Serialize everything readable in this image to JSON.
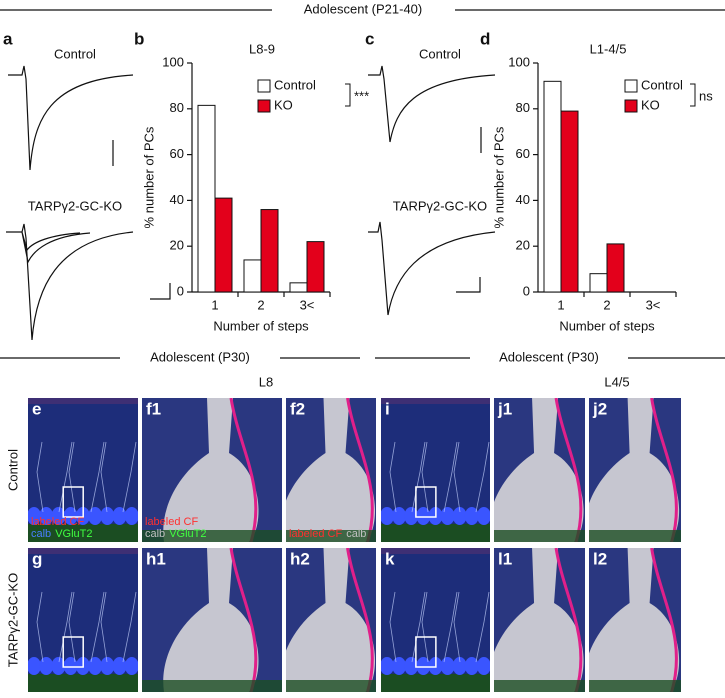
{
  "header": {
    "title": "Adolescent (P21-40)"
  },
  "traces": [
    {
      "panel": "a",
      "top": "Control",
      "bottom": "TARPγ2-GC-KO"
    },
    {
      "panel": "c",
      "top": "Control",
      "bottom": "TARPγ2-GC-KO"
    }
  ],
  "chart_data": [
    {
      "type": "bar",
      "panel": "b",
      "title": "L8-9",
      "x_label": "Number of steps",
      "y_label": "% number of PCs",
      "categories": [
        "1",
        "2",
        "3<"
      ],
      "series": [
        {
          "name": "Control",
          "color": "#ffffff",
          "values": [
            81.5,
            14,
            4
          ]
        },
        {
          "name": "KO",
          "color": "#e3001b",
          "values": [
            41,
            36,
            22
          ]
        }
      ],
      "ylim": [
        0,
        100
      ],
      "yticks": [
        0,
        20,
        40,
        60,
        80,
        100
      ],
      "significance": "***"
    },
    {
      "type": "bar",
      "panel": "d",
      "title": "L1-4/5",
      "x_label": "Number of steps",
      "y_label": "% number of PCs",
      "categories": [
        "1",
        "2",
        "3<"
      ],
      "series": [
        {
          "name": "Control",
          "color": "#ffffff",
          "values": [
            92,
            8,
            0
          ]
        },
        {
          "name": "KO",
          "color": "#e3001b",
          "values": [
            79,
            21,
            0
          ]
        }
      ],
      "ylim": [
        0,
        100
      ],
      "yticks": [
        0,
        20,
        40,
        60,
        80,
        100
      ],
      "significance": "ns"
    }
  ],
  "sections": [
    {
      "title": "Adolescent (P30)",
      "region": "L8"
    },
    {
      "title": "Adolescent (P30)",
      "region": "L4/5"
    }
  ],
  "row_labels": [
    "Control",
    "TARPγ2-GC-KO"
  ],
  "images": [
    {
      "label": "e",
      "captions": [
        [
          {
            "text": "labeled CF",
            "color": "#ff3030"
          }
        ],
        [
          {
            "text": "calb",
            "color": "#4a7dff"
          },
          {
            "text": "VGluT2",
            "color": "#40ff40"
          }
        ]
      ]
    },
    {
      "label": "f1",
      "captions": [
        [
          {
            "text": "labeled CF",
            "color": "#ff3030"
          }
        ],
        [
          {
            "text": "calb",
            "color": "#c0c0c0"
          },
          {
            "text": "VGluT2",
            "color": "#40ff40"
          }
        ]
      ]
    },
    {
      "label": "f2",
      "captions": [
        [
          {
            "text": "labeled CF",
            "color": "#ff3030"
          },
          {
            "text": "calb",
            "color": "#c0c0c0"
          }
        ]
      ]
    },
    {
      "label": "i",
      "captions": []
    },
    {
      "label": "j1",
      "captions": []
    },
    {
      "label": "j2",
      "captions": []
    },
    {
      "label": "g",
      "captions": []
    },
    {
      "label": "h1",
      "captions": []
    },
    {
      "label": "h2",
      "captions": []
    },
    {
      "label": "k",
      "captions": []
    },
    {
      "label": "l1",
      "captions": []
    },
    {
      "label": "l2",
      "captions": []
    }
  ]
}
